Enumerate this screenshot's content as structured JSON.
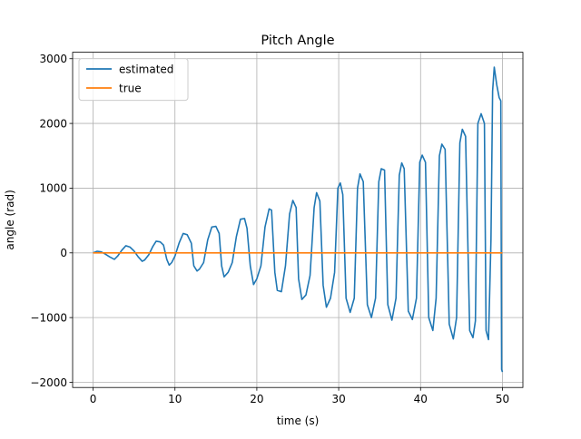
{
  "chart_data": {
    "type": "line",
    "title": "Pitch Angle",
    "xlabel": "time (s)",
    "ylabel": "angle (rad)",
    "xlim": [
      -2.5,
      52.5
    ],
    "ylim": [
      -2080,
      3100
    ],
    "xticks": [
      0,
      10,
      20,
      30,
      40,
      50
    ],
    "yticks": [
      -2000,
      -1000,
      0,
      1000,
      2000,
      3000
    ],
    "grid": true,
    "legend_position": "top-left",
    "series": [
      {
        "name": "estimated",
        "color": "#1f77b4",
        "x": [
          0.0,
          0.5,
          1.0,
          1.5,
          2.0,
          2.6,
          3.0,
          3.5,
          4.0,
          4.5,
          5.0,
          5.5,
          6.0,
          6.3,
          6.8,
          7.3,
          7.7,
          8.2,
          8.6,
          9.0,
          9.3,
          9.6,
          10.0,
          10.5,
          11.0,
          11.5,
          12.0,
          12.3,
          12.7,
          13.0,
          13.5,
          14.0,
          14.5,
          15.0,
          15.4,
          15.7,
          16.0,
          16.5,
          17.0,
          17.5,
          18.0,
          18.5,
          18.8,
          19.2,
          19.6,
          20.0,
          20.5,
          21.0,
          21.5,
          21.8,
          22.2,
          22.5,
          23.0,
          23.5,
          24.0,
          24.4,
          24.8,
          25.1,
          25.5,
          26.0,
          26.5,
          27.0,
          27.3,
          27.7,
          28.1,
          28.5,
          29.0,
          29.5,
          29.9,
          30.2,
          30.5,
          30.9,
          31.4,
          31.9,
          32.3,
          32.6,
          33.0,
          33.5,
          34.0,
          34.5,
          34.9,
          35.2,
          35.6,
          36.0,
          36.5,
          37.0,
          37.4,
          37.7,
          38.0,
          38.5,
          39.0,
          39.5,
          39.9,
          40.2,
          40.6,
          41.0,
          41.5,
          41.9,
          42.3,
          42.6,
          43.0,
          43.5,
          44.0,
          44.4,
          44.8,
          45.1,
          45.5,
          46.0,
          46.4,
          46.7,
          47.0,
          47.4,
          47.8,
          48.0,
          48.3,
          48.6,
          48.8,
          49.0,
          49.3,
          49.6,
          49.8,
          49.9,
          50.0
        ],
        "y": [
          0,
          25,
          15,
          -20,
          -60,
          -100,
          -50,
          40,
          110,
          90,
          30,
          -60,
          -130,
          -110,
          -30,
          100,
          180,
          170,
          120,
          -100,
          -190,
          -150,
          -50,
          150,
          300,
          280,
          150,
          -200,
          -280,
          -250,
          -150,
          200,
          400,
          410,
          300,
          -200,
          -370,
          -300,
          -150,
          250,
          520,
          530,
          380,
          -200,
          -490,
          -400,
          -200,
          400,
          680,
          660,
          -300,
          -580,
          -600,
          -200,
          600,
          810,
          700,
          -400,
          -720,
          -650,
          -350,
          700,
          930,
          800,
          -500,
          -840,
          -700,
          -300,
          1000,
          1080,
          900,
          -700,
          -920,
          -700,
          1000,
          1220,
          1100,
          -800,
          -1000,
          -700,
          1100,
          1300,
          1280,
          -800,
          -1040,
          -700,
          1200,
          1390,
          1300,
          -900,
          -1030,
          -700,
          1400,
          1510,
          1400,
          -1000,
          -1200,
          -700,
          1500,
          1680,
          1600,
          -1100,
          -1330,
          -1000,
          1700,
          1910,
          1800,
          -1200,
          -1310,
          -1050,
          2000,
          2150,
          2000,
          -1200,
          -1340,
          200,
          2500,
          2870,
          2600,
          2400,
          2350,
          -1800,
          -1840
        ]
      },
      {
        "name": "true",
        "color": "#ff7f0e",
        "x": [
          0,
          50
        ],
        "y": [
          0,
          0
        ]
      }
    ]
  }
}
